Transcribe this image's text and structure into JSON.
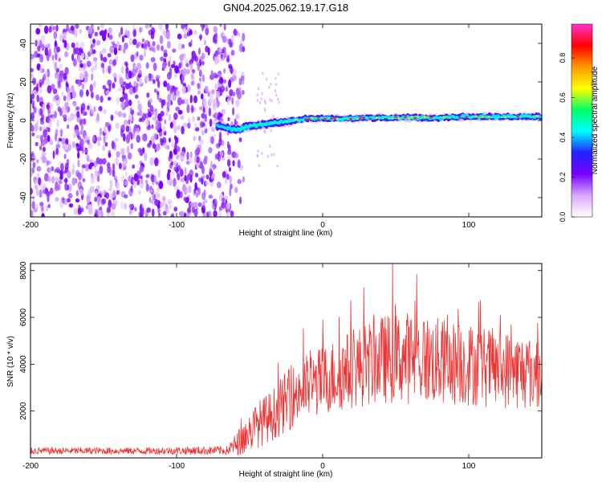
{
  "title": "GN04.2025.062.19.17.G18",
  "chart_data": [
    {
      "type": "heatmap",
      "name": "spectrogram",
      "xlabel": "Height of straight line (km)",
      "ylabel": "Frequency (Hz)",
      "xlim": [
        -200,
        150
      ],
      "ylim": [
        -50,
        50
      ],
      "xticks": [
        "-200",
        "-100",
        "0",
        "100"
      ],
      "xtick_values": [
        -200,
        -100,
        0,
        100
      ],
      "yticks": [
        "40",
        "20",
        "0",
        "-20",
        "-40"
      ],
      "ytick_values": [
        40,
        20,
        0,
        -20,
        -40
      ],
      "noise_region_km": [
        -200,
        -62
      ],
      "signal_track": {
        "x": [
          -70,
          -60,
          -50,
          -40,
          -30,
          -20,
          -10,
          0,
          20,
          40,
          60,
          80,
          100,
          120,
          150
        ],
        "y": [
          -3,
          -5,
          -3,
          -2,
          -1,
          0,
          1,
          1,
          1,
          1.5,
          1.5,
          1.5,
          2,
          2,
          2
        ]
      },
      "colorbar": {
        "label": "Normalized spectral amplitude",
        "ticks": [
          "0.0",
          "0.2",
          "0.4",
          "0.6",
          "0.8"
        ],
        "tick_values": [
          0.0,
          0.2,
          0.4,
          0.6,
          0.8
        ],
        "range": [
          0.0,
          0.97
        ],
        "colors": [
          "#ffffff",
          "#d9a8ff",
          "#7a00ff",
          "#2222ff",
          "#00ffff",
          "#00ff66",
          "#ffff00",
          "#ff9900",
          "#ff0000",
          "#ff33cc"
        ]
      }
    },
    {
      "type": "line",
      "name": "snr",
      "xlabel": "Height of straight line (km)",
      "ylabel": "SNR (10 * v/v)",
      "xlim": [
        -200,
        150
      ],
      "ylim": [
        0,
        8300
      ],
      "xticks": [
        "-200",
        "-100",
        "0",
        "100"
      ],
      "xtick_values": [
        -200,
        -100,
        0,
        100
      ],
      "yticks": [
        "2000",
        "4000",
        "6000",
        "8000"
      ],
      "ytick_values": [
        2000,
        4000,
        6000,
        8000
      ],
      "color": "#ee3333",
      "envelope": {
        "x": [
          -200,
          -120,
          -65,
          -55,
          -45,
          -35,
          -25,
          -15,
          0,
          20,
          40,
          60,
          80,
          100,
          120,
          150
        ],
        "mean": [
          300,
          300,
          320,
          800,
          1400,
          1800,
          2400,
          2900,
          3300,
          3800,
          4200,
          4300,
          4100,
          4000,
          3800,
          3600
        ],
        "spread": [
          150,
          150,
          200,
          700,
          1000,
          1100,
          1300,
          1400,
          1500,
          1700,
          1900,
          2000,
          1900,
          1800,
          1700,
          1600
        ]
      }
    }
  ]
}
